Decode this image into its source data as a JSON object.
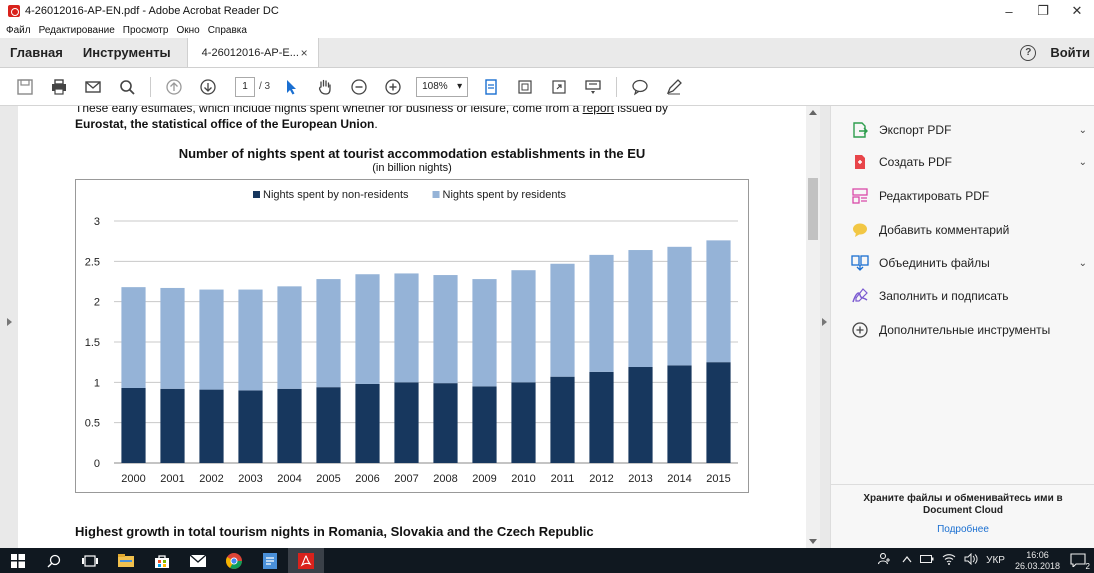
{
  "window": {
    "title": "4-26012016-AP-EN.pdf - Adobe Acrobat Reader DC",
    "minimize": "–",
    "restore": "❐",
    "close": "✕"
  },
  "menu": [
    "Файл",
    "Редактирование",
    "Просмотр",
    "Окно",
    "Справка"
  ],
  "tabs": {
    "home": "Главная",
    "tools": "Инструменты",
    "document": "4-26012016-AP-E...",
    "document_close": "×",
    "help": "?",
    "signin": "Войти"
  },
  "toolbar": {
    "page_current": "1",
    "page_total": "/ 3",
    "zoom": "108%",
    "zoom_caret": "▾"
  },
  "document": {
    "intro_line1": "These early estimates, which include nights spent whether for business or leisure, come from a ",
    "intro_link": "report",
    "intro_line1_end": " issued by",
    "intro_line2_bold": "Eurostat, the statistical office of the European Union",
    "intro_line2_end": ".",
    "heading2": "Highest growth in total tourism nights in Romania, Slovakia and the Czech Republic"
  },
  "chart_data": {
    "type": "bar",
    "stacked": true,
    "title": "Number of nights spent at tourist accommodation establishments in the EU",
    "subtitle": "(in billion nights)",
    "categories": [
      "2000",
      "2001",
      "2002",
      "2003",
      "2004",
      "2005",
      "2006",
      "2007",
      "2008",
      "2009",
      "2010",
      "2011",
      "2012",
      "2013",
      "2014",
      "2015"
    ],
    "series": [
      {
        "name": "Nights spent by non-residents",
        "color": "#17375e",
        "values": [
          0.93,
          0.92,
          0.91,
          0.9,
          0.92,
          0.94,
          0.98,
          1.0,
          0.99,
          0.95,
          1.0,
          1.07,
          1.13,
          1.19,
          1.21,
          1.25
        ]
      },
      {
        "name": "Nights spent by residents",
        "color": "#95b3d7",
        "values": [
          1.25,
          1.25,
          1.24,
          1.25,
          1.27,
          1.34,
          1.36,
          1.35,
          1.34,
          1.33,
          1.39,
          1.4,
          1.45,
          1.45,
          1.47,
          1.51
        ]
      }
    ],
    "yticks": [
      "0",
      "0.5",
      "1",
      "1.5",
      "2",
      "2.5",
      "3"
    ],
    "ylim": [
      0,
      3
    ],
    "grid": true,
    "legend": "top"
  },
  "panel": {
    "items": [
      {
        "label": "Экспорт PDF",
        "icon": "export-pdf-icon",
        "chevron": "⌄"
      },
      {
        "label": "Создать PDF",
        "icon": "create-pdf-icon",
        "chevron": "⌄"
      },
      {
        "label": "Редактировать PDF",
        "icon": "edit-pdf-icon",
        "chevron": ""
      },
      {
        "label": "Добавить комментарий",
        "icon": "comment-icon",
        "chevron": ""
      },
      {
        "label": "Объединить файлы",
        "icon": "combine-files-icon",
        "chevron": "⌄"
      },
      {
        "label": "Заполнить и подписать",
        "icon": "fill-sign-icon",
        "chevron": ""
      },
      {
        "label": "Дополнительные инструменты",
        "icon": "more-tools-icon",
        "chevron": ""
      }
    ],
    "cloud_line1": "Храните файлы и обменивайтесь ими в",
    "cloud_line2": "Document Cloud",
    "more_link": "Подробнее"
  },
  "taskbar": {
    "lang": "УКР",
    "time": "16:06",
    "date": "26.03.2018",
    "notif_count": "2"
  }
}
